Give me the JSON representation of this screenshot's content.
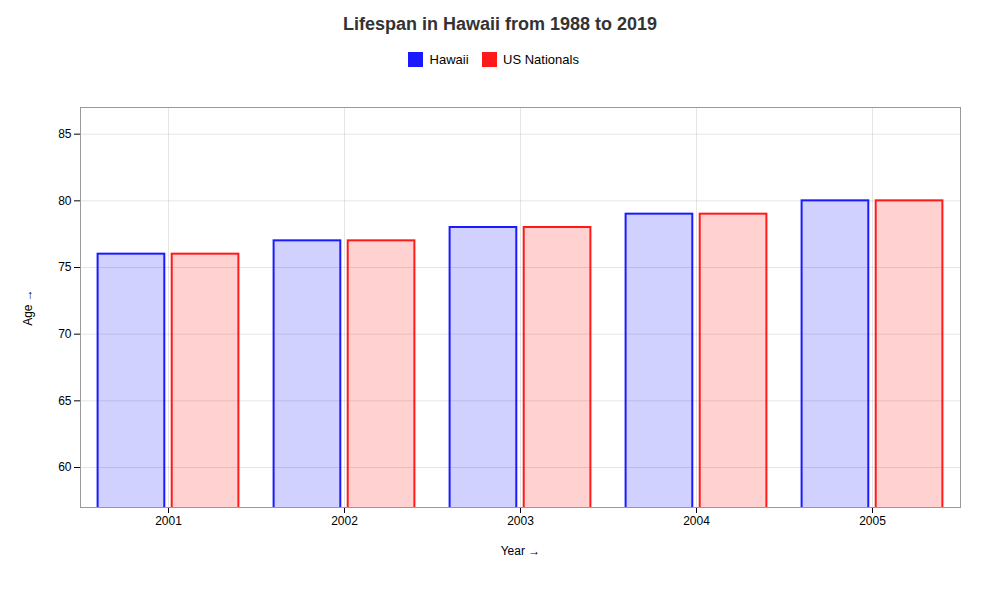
{
  "chart_data": {
    "type": "bar",
    "title": "Lifespan in Hawaii from 1988 to 2019",
    "xlabel": "Year",
    "ylabel": "Age",
    "categories": [
      "2001",
      "2002",
      "2003",
      "2004",
      "2005"
    ],
    "series": [
      {
        "name": "Hawaii",
        "color": "#1a1aff",
        "values": [
          76,
          77,
          78,
          79,
          80
        ]
      },
      {
        "name": "US Nationals",
        "color": "#ff1a1a",
        "values": [
          76,
          77,
          78,
          79,
          80
        ]
      }
    ],
    "ylim": [
      57,
      87
    ],
    "yticks": [
      60,
      65,
      70,
      75,
      80,
      85
    ],
    "grid": true,
    "legend": "top"
  }
}
